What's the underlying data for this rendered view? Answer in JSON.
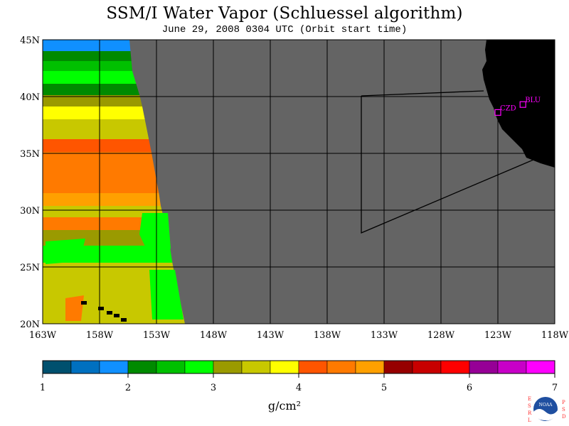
{
  "title": "SSM/I Water Vapor (Schluessel algorithm)",
  "subtitle": "June 29, 2008  0304 UTC  (Orbit start time)",
  "lat_labels": [
    "45N",
    "40N",
    "35N",
    "30N",
    "25N",
    "20N"
  ],
  "lon_labels": [
    "163W",
    "158W",
    "153W",
    "148W",
    "143W",
    "138W",
    "133W",
    "128W",
    "123W",
    "118W"
  ],
  "stations": [
    {
      "id": "CZD",
      "lon": -123.0,
      "lat": 38.6
    },
    {
      "id": "BLU",
      "lon": -120.8,
      "lat": 39.3
    }
  ],
  "colorbar": {
    "ticks": [
      "1",
      "2",
      "3",
      "4",
      "5",
      "6",
      "7"
    ],
    "units": "g/cm²",
    "colors": [
      "#00506e",
      "#0070c0",
      "#1090ff",
      "#008a00",
      "#00c000",
      "#00ff00",
      "#9a9a00",
      "#c8c800",
      "#ffff00",
      "#ff5500",
      "#ff7a00",
      "#ffa000",
      "#960000",
      "#c80000",
      "#ff0000",
      "#960096",
      "#c800c8",
      "#ff00ff"
    ]
  },
  "colors": {
    "land": "#000000",
    "nodata": "#646464",
    "grid": "#000000",
    "station": "#ff00ff"
  },
  "logo": {
    "org": "NOAA",
    "left": "ESRL",
    "right": "PSD"
  }
}
